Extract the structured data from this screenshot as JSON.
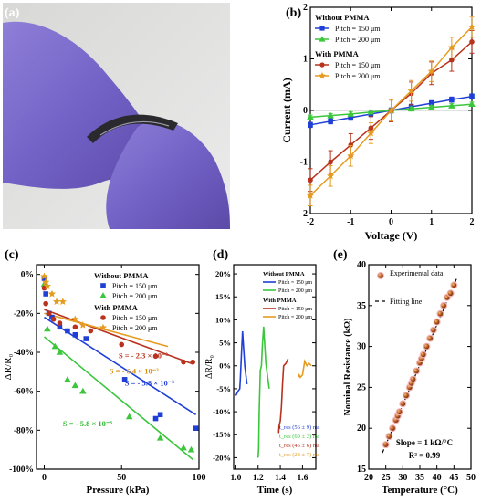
{
  "panels": [
    {
      "id": "a",
      "label": "(a)"
    },
    {
      "id": "b",
      "label": "(b)"
    },
    {
      "id": "c",
      "label": "(c)"
    },
    {
      "id": "d",
      "label": "(d)"
    },
    {
      "id": "e",
      "label": "(e)"
    }
  ],
  "chart_data": [
    {
      "panel": "b",
      "type": "line",
      "xlabel": "Voltage (V)",
      "ylabel": "Current (mA)",
      "xlim": [
        -2,
        2
      ],
      "ylim": [
        -2,
        2
      ],
      "xticks": [
        -2,
        -1,
        0,
        1,
        2
      ],
      "yticks": [
        -2,
        -1,
        0,
        1,
        2
      ],
      "legend": {
        "position": "top-left",
        "groups": [
          {
            "title": "Without PMMA",
            "entries": [
              "Pitch = 150 μm",
              "Pitch = 200 μm"
            ]
          },
          {
            "title": "With PMMA",
            "entries": [
              "Pitch = 150 μm",
              "Pitch = 200 μm"
            ]
          }
        ]
      },
      "x": [
        -2,
        -1.5,
        -1,
        -0.5,
        0,
        0.5,
        1,
        1.5,
        2
      ],
      "series": [
        {
          "name": "Pitch = 150 μm",
          "group": "Without PMMA",
          "color": "#1f3fd6",
          "marker": "square",
          "values": [
            -0.28,
            -0.21,
            -0.14,
            -0.07,
            0,
            0.07,
            0.14,
            0.21,
            0.27
          ],
          "err": 0.05
        },
        {
          "name": "Pitch = 200 μm",
          "group": "Without PMMA",
          "color": "#3bc63b",
          "marker": "triangle",
          "values": [
            -0.13,
            -0.1,
            -0.07,
            -0.03,
            0,
            0.03,
            0.06,
            0.09,
            0.12
          ],
          "err": 0.04
        },
        {
          "name": "Pitch = 150 μm",
          "group": "With PMMA",
          "color": "#b8321e",
          "marker": "circle",
          "values": [
            -1.35,
            -1.0,
            -0.67,
            -0.34,
            0,
            0.33,
            0.72,
            0.98,
            1.33
          ],
          "err": 0.22
        },
        {
          "name": "Pitch = 200 μm",
          "group": "With PMMA",
          "color": "#e69b1e",
          "marker": "star",
          "values": [
            -1.65,
            -1.27,
            -0.88,
            -0.44,
            0,
            0.38,
            0.76,
            1.22,
            1.62
          ],
          "err": 0.2
        }
      ]
    },
    {
      "panel": "c",
      "type": "scatter",
      "xlabel": "Pressure (kPa)",
      "ylabel": "ΔR/R₀",
      "xlim": [
        -5,
        100
      ],
      "ylim": [
        -100,
        5
      ],
      "xticks": [
        0,
        50,
        100
      ],
      "yticks": [
        0,
        -20,
        -40,
        -60,
        -80,
        -100
      ],
      "ytick_labels": [
        "0%",
        "-20%",
        "-40%",
        "-60%",
        "-80%",
        "-100%"
      ],
      "legend": {
        "position": "top-right",
        "groups": [
          {
            "title": "Without PMMA",
            "entries": [
              "Pitch = 150 μm",
              "Pitch = 200 μm"
            ]
          },
          {
            "title": "With PMMA",
            "entries": [
              "Pitch = 150 μm",
              "Pitch = 200 μm"
            ]
          }
        ]
      },
      "series": [
        {
          "name": "Pitch = 150 μm",
          "group": "Without PMMA",
          "color": "#1f3fd6",
          "marker": "square",
          "x": [
            0,
            1,
            3,
            5,
            10,
            15,
            20,
            27,
            52,
            72,
            75,
            98
          ],
          "y": [
            -2,
            -10,
            -20,
            -22,
            -27,
            -29,
            -31,
            -33,
            -54,
            -74,
            -72,
            -79
          ]
        },
        {
          "name": "Pitch = 200 μm",
          "group": "Without PMMA",
          "color": "#3bc63b",
          "marker": "triangle",
          "x": [
            0,
            2,
            7,
            10,
            15,
            20,
            25,
            55,
            75,
            90,
            95
          ],
          "y": [
            -5,
            -28,
            -37,
            -40,
            -54,
            -57,
            -60,
            -73,
            -84,
            -89,
            -90
          ]
        },
        {
          "name": "Pitch = 150 μm",
          "group": "With PMMA",
          "color": "#b8321e",
          "marker": "circle",
          "x": [
            0,
            1,
            3,
            6,
            10,
            20,
            30,
            50,
            72,
            90,
            96
          ],
          "y": [
            -7,
            -15,
            -20,
            -23,
            -25,
            -27,
            -29,
            -36,
            -42,
            -45,
            -45
          ]
        },
        {
          "name": "Pitch = 200 μm",
          "group": "With PMMA",
          "color": "#e69b1e",
          "marker": "star",
          "x": [
            0,
            1,
            2,
            5,
            8,
            12,
            20,
            25
          ],
          "y": [
            -1,
            -4,
            -6,
            -10,
            -14,
            -14,
            -23,
            -26
          ]
        }
      ],
      "fits": [
        {
          "color": "#b8321e",
          "x": [
            0,
            96
          ],
          "y": [
            -18,
            -46
          ]
        },
        {
          "color": "#e69b1e",
          "x": [
            0,
            80
          ],
          "y": [
            -20,
            -37
          ]
        },
        {
          "color": "#1f3fd6",
          "x": [
            0,
            98
          ],
          "y": [
            -22,
            -72
          ]
        },
        {
          "color": "#3bc63b",
          "x": [
            0,
            96
          ],
          "y": [
            -32,
            -95
          ]
        }
      ],
      "annotations": [
        {
          "text": "S = - 2.3 × 10⁻³",
          "color": "#b8321e",
          "x": 64,
          "y": -43
        },
        {
          "text": "S = - 6.4 × 10⁻³",
          "color": "#d4920a",
          "x": 58,
          "y": -51
        },
        {
          "text": "S = - 5.8 × 10⁻³",
          "color": "#1f3fd6",
          "x": 68,
          "y": -57
        },
        {
          "text": "S = - 5.8 × 10⁻³",
          "color": "#2bb52b",
          "x": 28,
          "y": -78
        }
      ]
    },
    {
      "panel": "d",
      "type": "line",
      "xlabel": "Time (s)",
      "ylabel": "ΔR/R₀",
      "xlim": [
        0.98,
        1.72
      ],
      "ylim": [
        -22.5,
        22
      ],
      "xticks": [
        1.0,
        1.2,
        1.4,
        1.6
      ],
      "yticks": [
        20,
        15,
        10,
        5,
        0,
        -5,
        -10,
        -15,
        -20
      ],
      "ytick_labels": [
        "20%",
        "15%",
        "10%",
        "5%",
        "0%",
        "-5%",
        "-10%",
        "-15%",
        "-20%"
      ],
      "legend": {
        "position": "top-right",
        "groups": [
          {
            "title": "Without PMMA",
            "entries": [
              "Pitch = 150 μm",
              "Pitch = 200 μm"
            ]
          },
          {
            "title": "With PMMA",
            "entries": [
              "Pitch = 150 μm",
              "Pitch = 200 μm"
            ]
          }
        ]
      },
      "series": [
        {
          "name": "Pitch = 150 μm",
          "group": "Without PMMA",
          "color": "#1f3fd6",
          "x": [
            1.0,
            1.01,
            1.02,
            1.035,
            1.04,
            1.05,
            1.06,
            1.08,
            1.1
          ],
          "y": [
            -6.5,
            -6,
            -5.5,
            -5,
            -3,
            2.5,
            7.5,
            0,
            -4
          ]
        },
        {
          "name": "Pitch = 200 μm",
          "group": "Without PMMA",
          "color": "#3bc63b",
          "x": [
            1.2,
            1.205,
            1.21,
            1.22,
            1.23,
            1.24,
            1.25,
            1.27,
            1.3
          ],
          "y": [
            -20,
            -18,
            -10,
            -1,
            0,
            5,
            8.5,
            0.5,
            -5
          ]
        },
        {
          "name": "Pitch = 150 μm",
          "group": "With PMMA",
          "color": "#b8321e",
          "x": [
            1.38,
            1.385,
            1.39,
            1.4,
            1.41,
            1.42,
            1.43,
            1.45,
            1.47
          ],
          "y": [
            -14.5,
            -14.5,
            -13,
            -12,
            -9,
            -4,
            0,
            0.5,
            1.5
          ]
        },
        {
          "name": "Pitch = 200 μm",
          "group": "With PMMA",
          "color": "#e69b1e",
          "x": [
            1.56,
            1.57,
            1.58,
            1.6,
            1.62,
            1.64,
            1.66,
            1.68
          ],
          "y": [
            -2.5,
            -2,
            -2.5,
            -2,
            1,
            0,
            0.5,
            0
          ]
        }
      ],
      "annotations": [
        "t_res (56 ± 9) ms",
        "t_res (69 ± 2) ms",
        "t_res (45 ± 6) ms",
        "t_res (28 ± 7) ms"
      ]
    },
    {
      "panel": "e",
      "type": "scatter",
      "xlabel": "Temperature (°C)",
      "ylabel": "Nominal Resistance (kΩ)",
      "xlim": [
        20,
        50
      ],
      "ylim": [
        15,
        40
      ],
      "xticks": [
        20,
        25,
        30,
        35,
        40,
        45,
        50
      ],
      "yticks": [
        15,
        20,
        25,
        30,
        35,
        40
      ],
      "legend": {
        "position": "top-left",
        "entries": [
          "Experimental data",
          "Fitting line"
        ]
      },
      "series": [
        {
          "name": "Experimental data",
          "color": "#8b3a1a",
          "marker": "circle",
          "x": [
            25,
            26,
            27,
            28,
            28.5,
            29,
            30,
            31,
            32,
            32.5,
            33,
            34,
            35,
            35.5,
            36,
            37,
            38,
            39,
            40,
            41,
            42,
            43,
            44,
            45
          ],
          "y": [
            18,
            19,
            20,
            21,
            21.5,
            22,
            23,
            24,
            25,
            25.5,
            26,
            27,
            28,
            28.5,
            29,
            30,
            31,
            32,
            33,
            34,
            35,
            36,
            36.5,
            37.5
          ]
        }
      ],
      "fit": {
        "name": "Fitting line",
        "x": [
          24,
          46
        ],
        "y": [
          17,
          38.5
        ]
      },
      "annotations": [
        "Slope = 1 kΩ/°C",
        "R² = 0.99"
      ]
    }
  ]
}
